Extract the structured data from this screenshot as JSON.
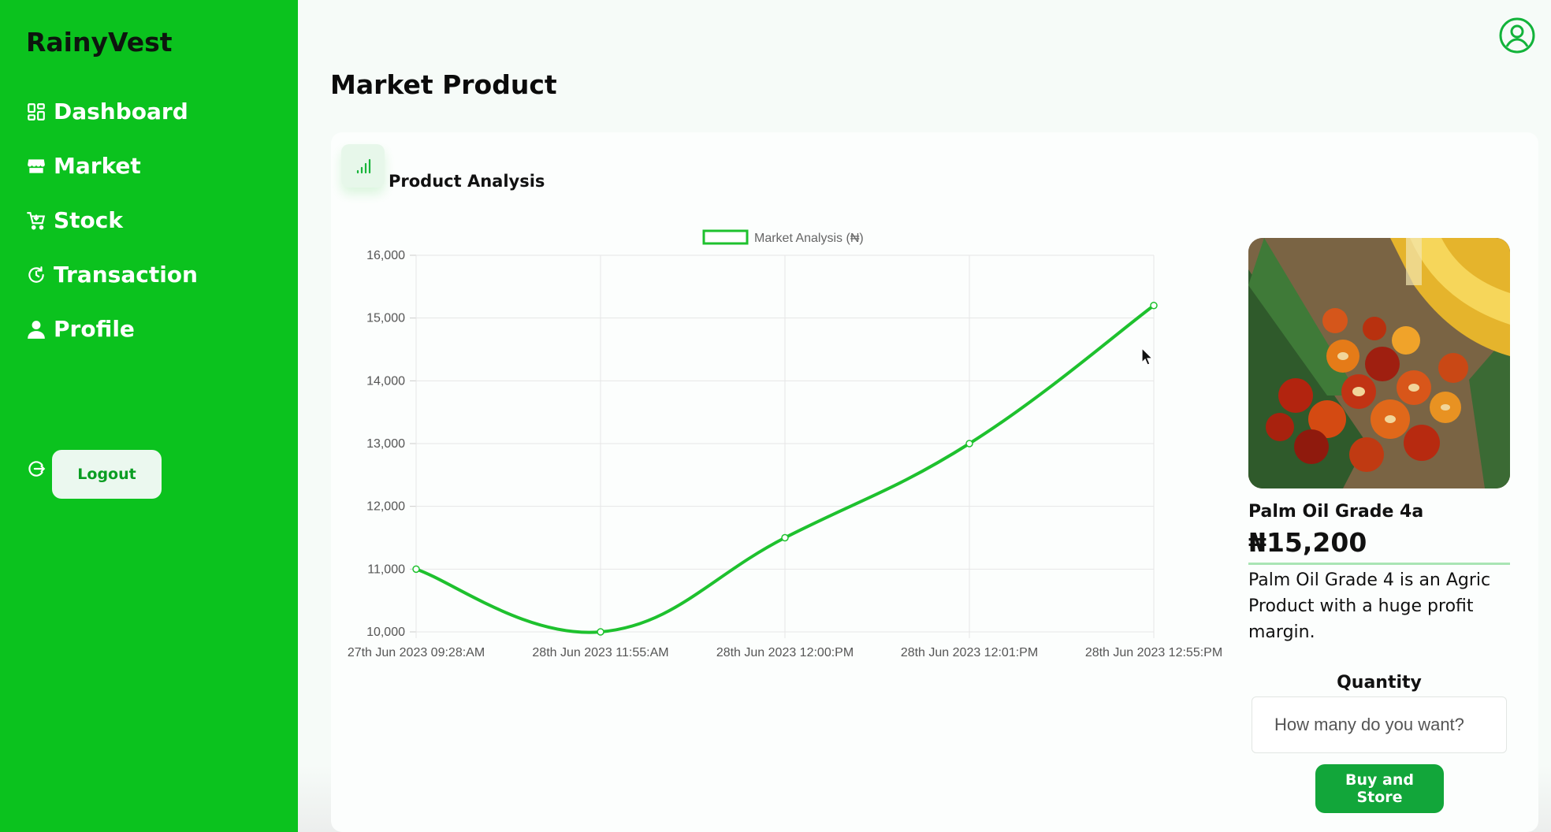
{
  "app": {
    "brand": "RainyVest"
  },
  "sidebar": {
    "items": [
      {
        "label": "Dashboard",
        "icon": "grid-icon"
      },
      {
        "label": "Market",
        "icon": "store-icon"
      },
      {
        "label": "Stock",
        "icon": "cart-icon"
      },
      {
        "label": "Transaction",
        "icon": "clock-refresh-icon"
      },
      {
        "label": "Profile",
        "icon": "user-icon"
      }
    ],
    "logout_label": "Logout"
  },
  "header": {
    "title": "Market Product"
  },
  "analysis": {
    "title": "Product Analysis"
  },
  "product": {
    "name": "Palm Oil Grade 4a",
    "price": "₦15,200",
    "description": "Palm Oil Grade 4 is an Agric Product with a huge profit margin.",
    "quantity_label": "Quantity",
    "quantity_placeholder": "How many do you want?",
    "buy_label": "Buy and Store"
  },
  "colors": {
    "sidebar": "#0bc21e",
    "accent": "#12a63a",
    "line": "#1ec12e"
  },
  "chart_data": {
    "type": "line",
    "title": "",
    "xlabel": "",
    "ylabel": "",
    "categories": [
      "27th Jun 2023 09:28:AM",
      "28th Jun 2023 11:55:AM",
      "28th Jun 2023 12:00:PM",
      "28th Jun 2023 12:01:PM",
      "28th Jun 2023 12:55:PM"
    ],
    "series": [
      {
        "name": "Market Analysis (₦)",
        "values": [
          11000,
          10000,
          11500,
          13000,
          15200
        ]
      }
    ],
    "ylim": [
      10000,
      16000
    ],
    "yticks": [
      "10,000",
      "11,000",
      "12,000",
      "13,000",
      "14,000",
      "15,000",
      "16,000"
    ],
    "grid": true,
    "legend": "top-center"
  }
}
